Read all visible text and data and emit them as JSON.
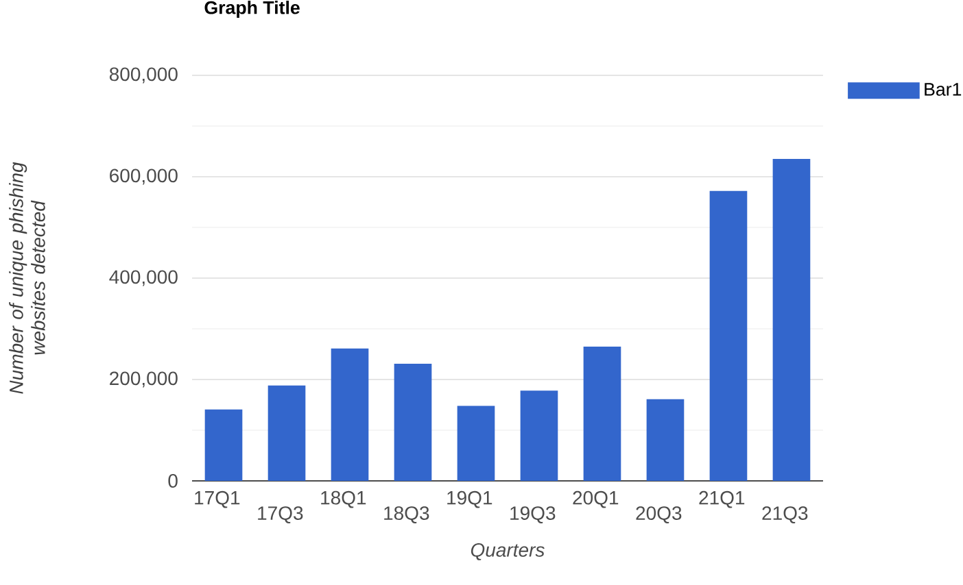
{
  "chart_data": {
    "type": "bar",
    "title": "Graph Title",
    "xlabel": "Quarters",
    "ylabel": "Number of unique phishing websites detected",
    "categories": [
      "17Q1",
      "17Q3",
      "18Q1",
      "18Q3",
      "19Q1",
      "19Q3",
      "20Q1",
      "20Q3",
      "21Q1",
      "21Q3"
    ],
    "series": [
      {
        "name": "Bar1",
        "color": "#3366cc",
        "values": [
          141000,
          188000,
          261000,
          231000,
          148000,
          178000,
          265000,
          161000,
          572000,
          635000
        ]
      }
    ],
    "ylim": [
      0,
      800000
    ],
    "yticks": [
      {
        "value": 0,
        "label": "0"
      },
      {
        "value": 200000,
        "label": "200,000"
      },
      {
        "value": 400000,
        "label": "400,000"
      },
      {
        "value": 600000,
        "label": "600,000"
      },
      {
        "value": 800000,
        "label": "800,000"
      }
    ],
    "grid": "y",
    "legend": "top right"
  }
}
